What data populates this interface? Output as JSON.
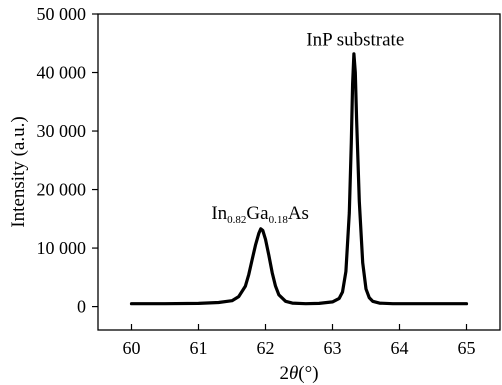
{
  "chart_data": {
    "type": "line",
    "title": "",
    "xlabel": {
      "prefix": "2",
      "symbol": "θ",
      "unit": "(°)"
    },
    "ylabel": "Intensity (a.u.)",
    "xlim": [
      59.5,
      65.5
    ],
    "ylim": [
      -4000,
      50000
    ],
    "x_ticks": [
      60,
      61,
      62,
      63,
      64,
      65
    ],
    "x_tick_labels": [
      "60",
      "61",
      "62",
      "63",
      "64",
      "65"
    ],
    "y_ticks": [
      0,
      10000,
      20000,
      30000,
      40000,
      50000
    ],
    "y_tick_labels": [
      "0",
      "10 000",
      "20 000",
      "30 000",
      "40 000",
      "50 000"
    ],
    "grid": false,
    "series": [
      {
        "color": "#000000",
        "x": [
          60.0,
          60.5,
          61.0,
          61.3,
          61.5,
          61.6,
          61.7,
          61.75,
          61.8,
          61.85,
          61.9,
          61.93,
          61.96,
          62.0,
          62.05,
          62.1,
          62.15,
          62.2,
          62.3,
          62.4,
          62.6,
          62.8,
          63.0,
          63.1,
          63.15,
          63.2,
          63.25,
          63.28,
          63.3,
          63.32,
          63.34,
          63.36,
          63.4,
          63.45,
          63.5,
          63.55,
          63.6,
          63.7,
          63.9,
          64.5,
          65.0
        ],
        "y": [
          500,
          500,
          550,
          700,
          1000,
          1700,
          3500,
          5500,
          8000,
          10500,
          12500,
          13300,
          13000,
          11500,
          8800,
          5800,
          3500,
          2000,
          900,
          600,
          500,
          550,
          800,
          1400,
          2500,
          6000,
          16000,
          28000,
          38000,
          43200,
          40000,
          32000,
          18000,
          7500,
          3000,
          1500,
          900,
          600,
          500,
          500,
          500
        ]
      }
    ],
    "annotations": [
      {
        "parts": [
          "In",
          "0.82",
          "Ga",
          "0.18",
          "As"
        ],
        "x": 61.92,
        "y": 15000
      },
      {
        "text": "InP substrate",
        "x": 63.34,
        "y": 44600
      }
    ]
  }
}
